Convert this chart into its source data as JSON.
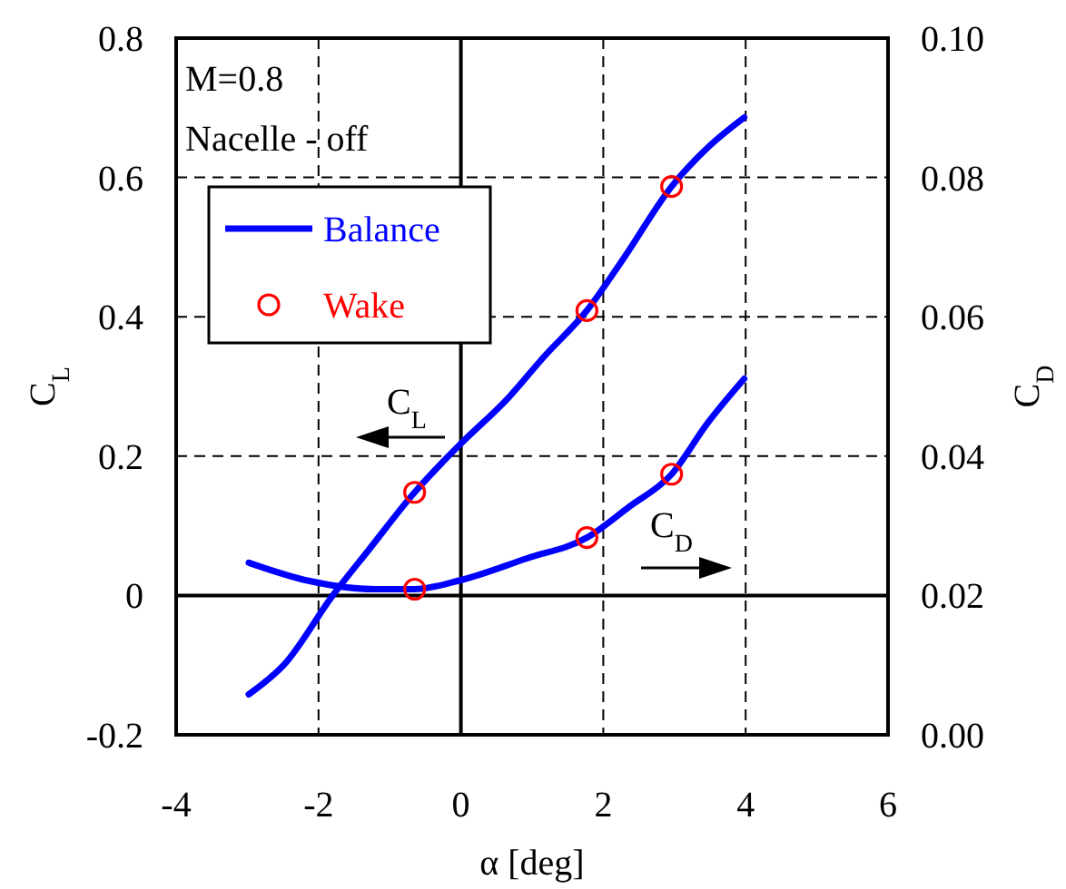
{
  "chart_data": {
    "type": "line",
    "xlabel": "α [deg]",
    "ylabel": "C$_{L}$",
    "y2label": "C$_{D}$",
    "annotations": [
      "M=0.8",
      "Nacelle - off",
      "C$_{L}$",
      "C$_{D}$"
    ],
    "xlim": [
      -4,
      6
    ],
    "xticks": [
      -4,
      -2,
      0,
      2,
      4,
      6
    ],
    "ylim": [
      -0.2,
      0.8
    ],
    "yticks": [
      -0.2,
      0,
      0.2,
      0.4,
      0.6,
      0.8
    ],
    "y2lim": [
      0,
      0.1
    ],
    "y2ticks": [
      {
        "value": 0,
        "label": "0.00"
      },
      {
        "value": 0.02,
        "label": "0.02"
      },
      {
        "value": 0.04,
        "label": "0.04"
      },
      {
        "value": 0.06,
        "label": "0.06"
      },
      {
        "value": 0.08,
        "label": "0.08"
      },
      {
        "value": 0.1,
        "label": "0.10"
      }
    ],
    "grid": true,
    "legend": "top left",
    "line_style": "solid",
    "series": [
      {
        "name": "Balance",
        "color": "#0000ff",
        "x": [
          -2.98,
          -2.48,
          -1.8,
          -1.29,
          -0.65,
          -0.27,
          0,
          0.66,
          1.17,
          1.77,
          2.28,
          2.96,
          3.47,
          3.98
        ],
        "values": [
          -0.142,
          -0.099,
          0,
          0.066,
          0.148,
          0.19,
          0.218,
          0.283,
          0.343,
          0.409,
          0.483,
          0.587,
          0.643,
          0.686
        ]
      },
      {
        "name": "Wake",
        "type": "scatter",
        "color": "#ff0000",
        "marker": "circle",
        "x": [
          -0.65,
          1.77,
          2.96
        ],
        "values": [
          0.148,
          0.409,
          0.587
        ]
      },
      {
        "axis": "y2",
        "color": "#0000ff",
        "x": [
          -2.98,
          -2.14,
          -1.21,
          -0.65,
          0,
          0.92,
          1.77,
          2.36,
          2.96,
          3.47,
          3.98
        ],
        "values": [
          0.0247,
          0.0221,
          0.0209,
          0.0209,
          0.0222,
          0.0253,
          0.0283,
          0.0327,
          0.0374,
          0.0448,
          0.0511
        ]
      },
      {
        "type": "scatter",
        "axis": "y2",
        "color": "#ff0000",
        "marker": "circle",
        "x": [
          -0.65,
          1.77,
          2.96
        ],
        "values": [
          0.0209,
          0.0283,
          0.0374
        ]
      }
    ]
  }
}
